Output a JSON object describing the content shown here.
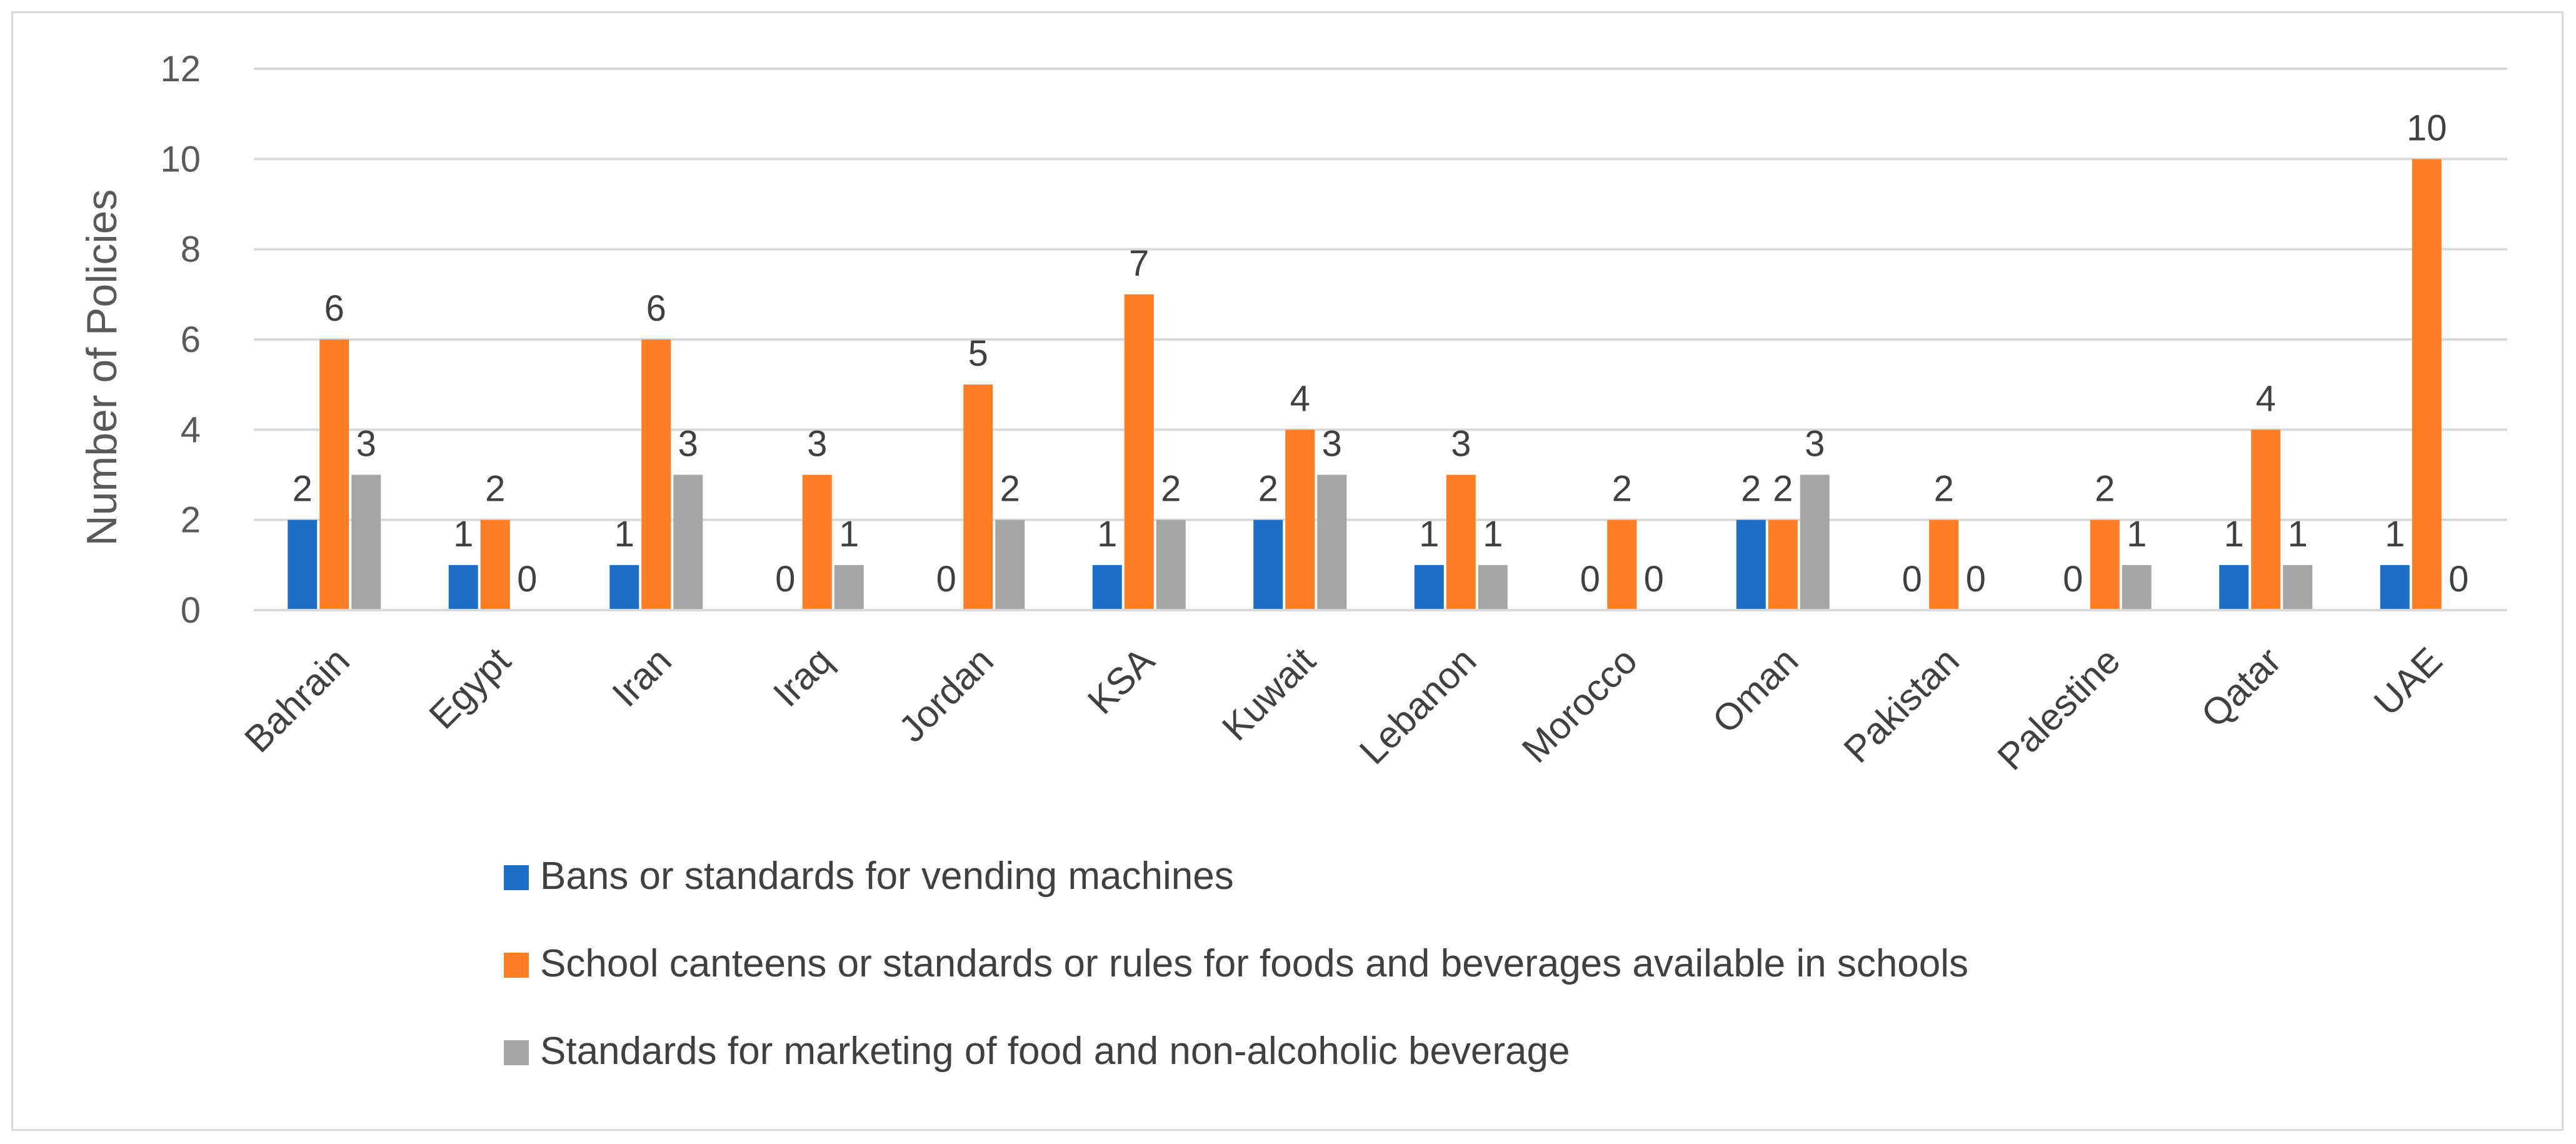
{
  "chart_data": {
    "type": "bar",
    "title": "",
    "xlabel": "",
    "ylabel": "Number of Policies",
    "ylim": [
      0,
      12
    ],
    "yticks": [
      0,
      2,
      4,
      6,
      8,
      10,
      12
    ],
    "grid": true,
    "legend_position": "bottom",
    "categories": [
      "Bahrain",
      "Egypt",
      "Iran",
      "Iraq",
      "Jordan",
      "KSA",
      "Kuwait",
      "Lebanon",
      "Morocco",
      "Oman",
      "Pakistan",
      "Palestine",
      "Qatar",
      "UAE"
    ],
    "series": [
      {
        "name": "Bans or standards for vending machines",
        "color": "#1f6fc6",
        "values": [
          2,
          1,
          1,
          0,
          0,
          1,
          2,
          1,
          0,
          2,
          0,
          0,
          1,
          1
        ]
      },
      {
        "name": "School canteens or standards or rules for foods and beverages available in schools",
        "color": "#ff7f27",
        "values": [
          6,
          2,
          6,
          3,
          5,
          7,
          4,
          3,
          2,
          2,
          2,
          2,
          4,
          10
        ]
      },
      {
        "name": "Standards for marketing of food and non-alcoholic beverage",
        "color": "#a5a5a5",
        "values": [
          3,
          0,
          3,
          1,
          2,
          2,
          3,
          1,
          0,
          3,
          0,
          1,
          1,
          0
        ]
      }
    ],
    "data_labels": [
      [
        "2",
        "1",
        "1",
        "0",
        "0",
        "1",
        "2",
        "1",
        "0",
        "2",
        "0",
        "0",
        "1",
        "1"
      ],
      [
        "6",
        "2",
        "6",
        "3",
        "5",
        "7",
        "4",
        "3",
        "2",
        "2",
        "2",
        "2",
        "4",
        "10"
      ],
      [
        "3",
        "0",
        "3",
        "1",
        "2",
        "2",
        "3",
        "1",
        "0",
        "3",
        "0",
        "1",
        "1",
        "0"
      ]
    ],
    "label_mask": [
      [
        true,
        true,
        true,
        true,
        true,
        true,
        true,
        true,
        true,
        true,
        true,
        true,
        true,
        true
      ],
      [
        true,
        true,
        true,
        true,
        true,
        true,
        true,
        true,
        true,
        true,
        true,
        true,
        true,
        true
      ],
      [
        true,
        true,
        true,
        true,
        true,
        true,
        true,
        true,
        true,
        true,
        true,
        true,
        true,
        true
      ]
    ]
  }
}
